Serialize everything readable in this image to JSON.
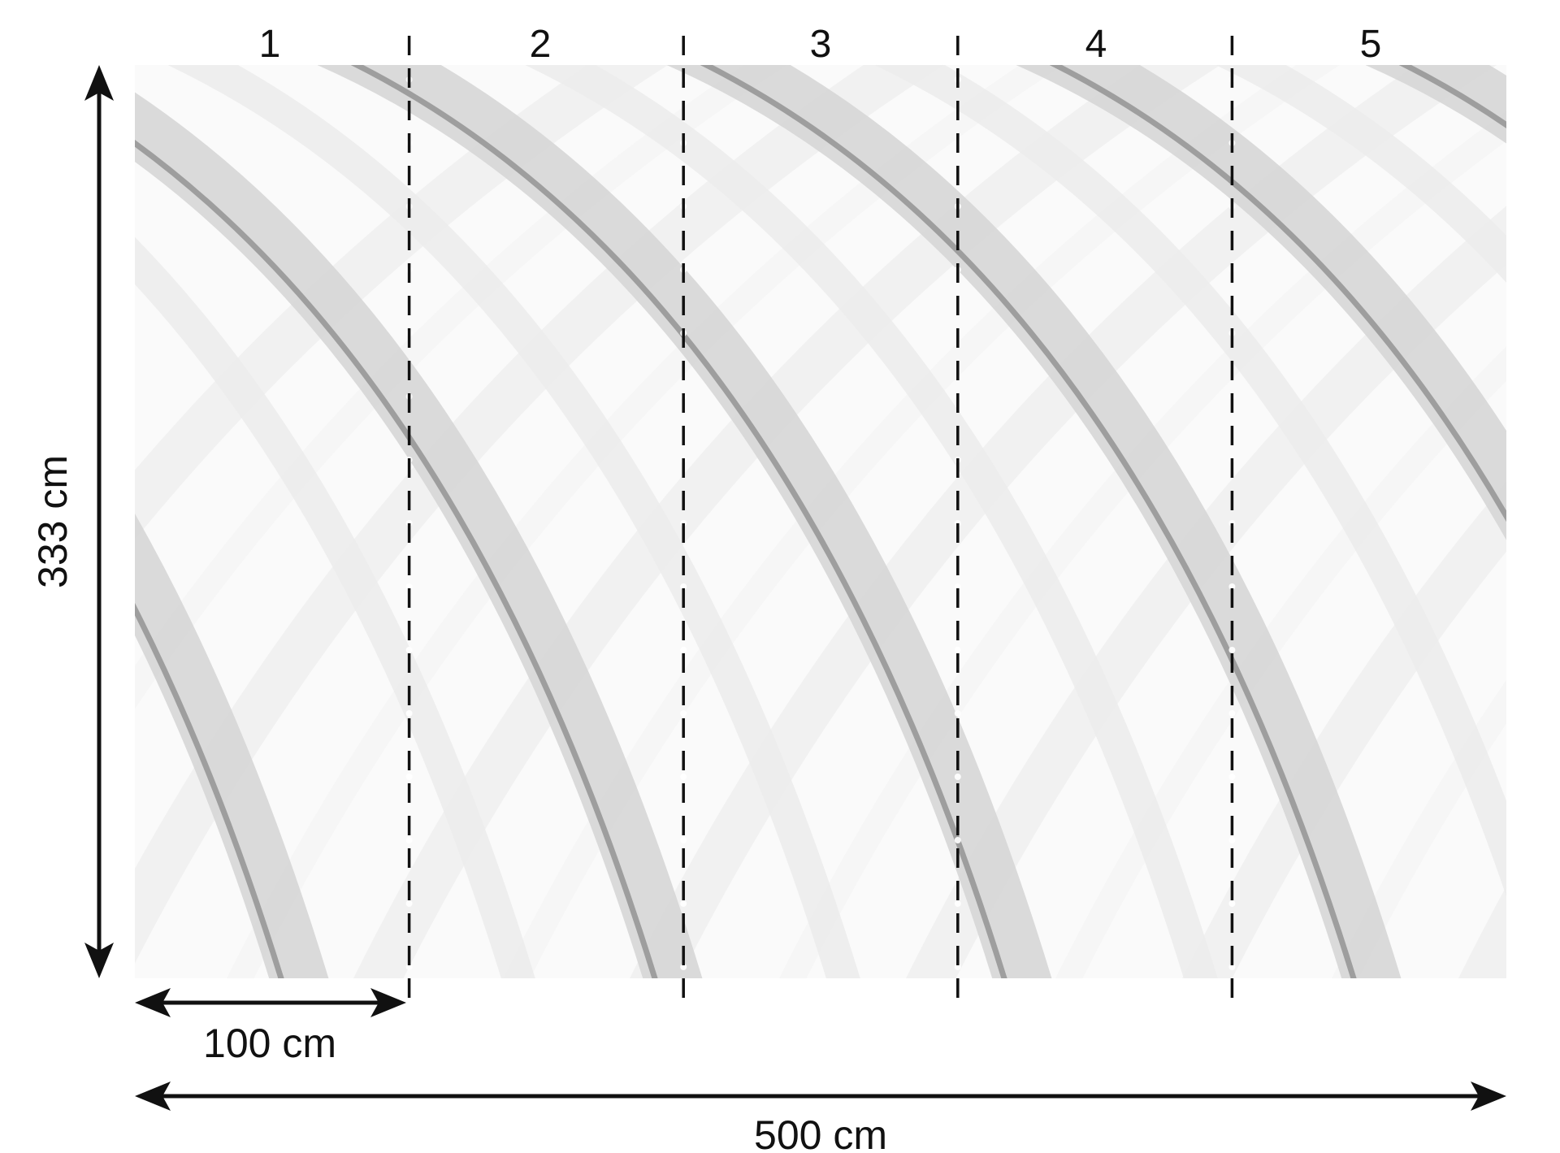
{
  "panels": {
    "labels": [
      "1",
      "2",
      "3",
      "4",
      "5"
    ]
  },
  "dimensions": {
    "height_label": "333 cm",
    "panel_width_label": "100 cm",
    "total_width_label": "500 cm"
  },
  "colors": {
    "background": "#ffffff",
    "band_light": "#ececec",
    "band_mid": "#d6d6d6",
    "band_dark": "#b8b8b8",
    "stroke_dark": "#8a8a8a",
    "ink": "#111111"
  }
}
